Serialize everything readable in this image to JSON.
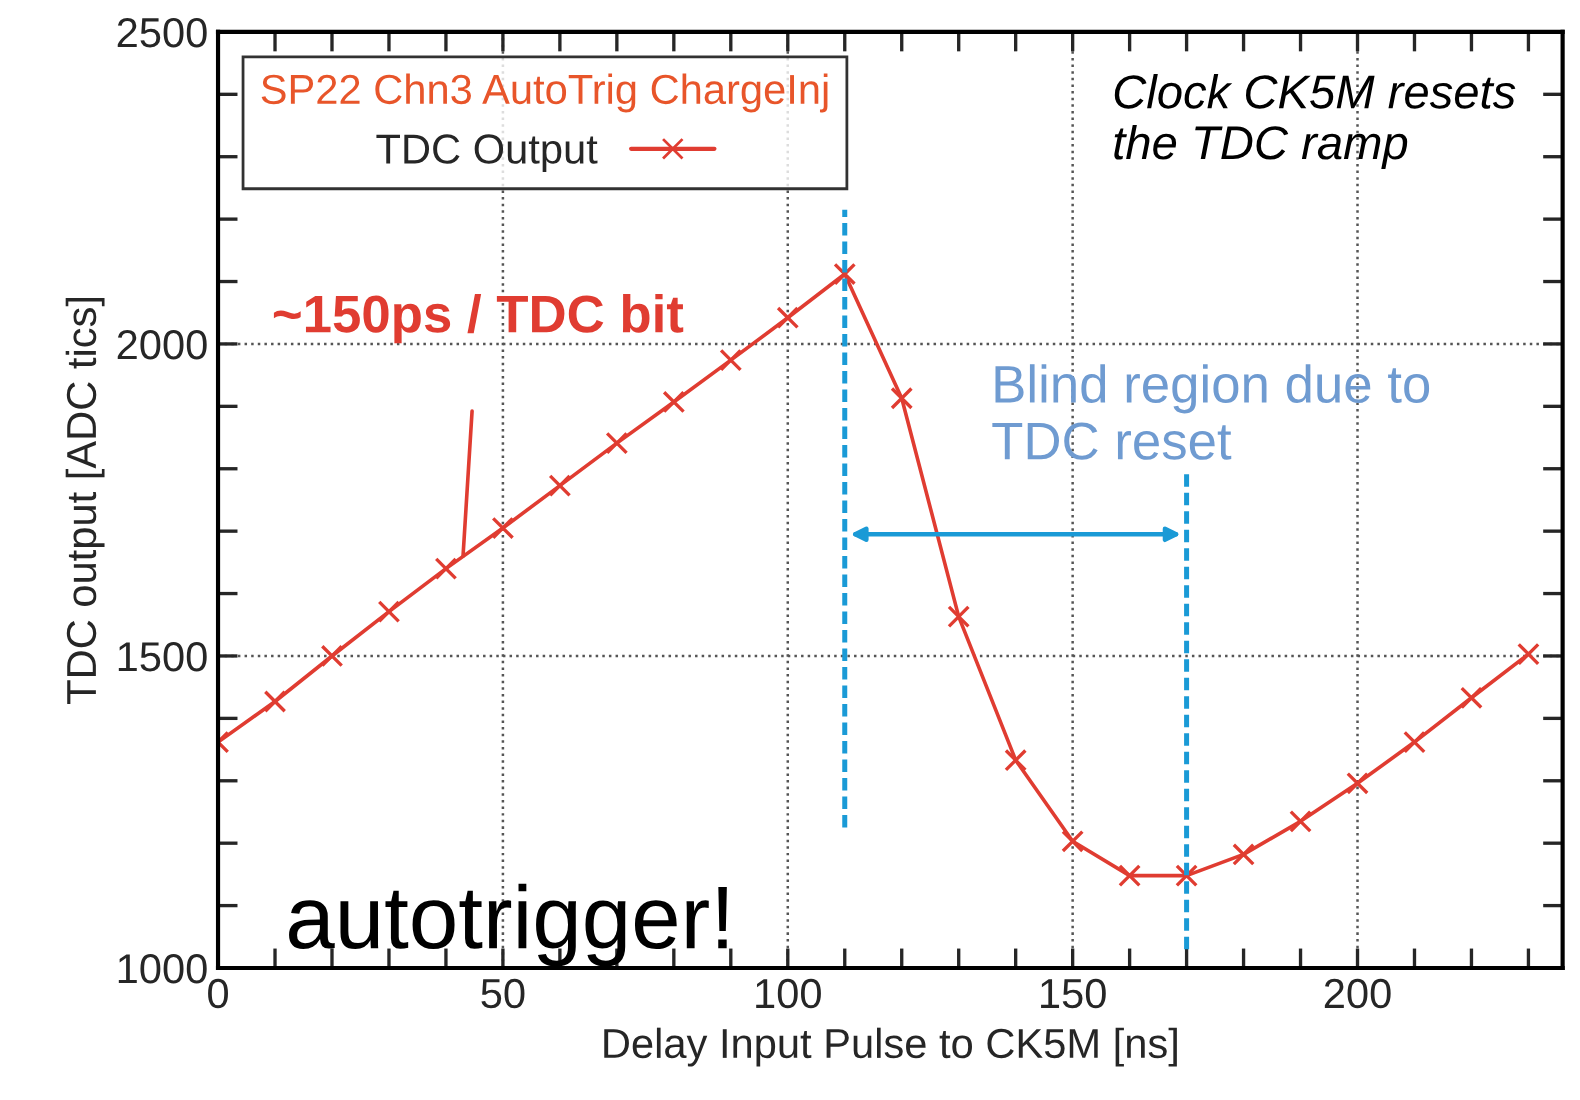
{
  "chart_data": {
    "type": "line",
    "xlabel": "Delay Input Pulse to CK5M [ns]",
    "ylabel": "TDC output [ADC tics]",
    "x": [
      0,
      10,
      20,
      30,
      40,
      50,
      60,
      70,
      80,
      90,
      100,
      110,
      120,
      130,
      140,
      150,
      160,
      170,
      180,
      190,
      200,
      210,
      220,
      230
    ],
    "series": [
      {
        "name": "TDC Output",
        "color": "#e03c31",
        "values": [
          1362,
          1427,
          1500,
          1571,
          1640,
          1705,
          1773,
          1841,
          1907,
          1974,
          2042,
          2112,
          1913,
          1563,
          1333,
          1203,
          1148,
          1148,
          1182,
          1235,
          1296,
          1362,
          1433,
          1503
        ]
      }
    ],
    "legend_title": "SP22 Chn3 AutoTrig ChargeInj",
    "legend": "top left",
    "marker": "cross",
    "line_style": "solid",
    "grid": true,
    "xlim": [
      0,
      236
    ],
    "ylim": [
      1000,
      2500
    ],
    "xticks": [
      0,
      {
        "value": 10,
        "label": null
      },
      {
        "value": 20,
        "label": null
      },
      {
        "value": 30,
        "label": null
      },
      {
        "value": 40,
        "label": null
      },
      50,
      {
        "value": 60,
        "label": null
      },
      {
        "value": 70,
        "label": null
      },
      {
        "value": 80,
        "label": null
      },
      {
        "value": 90,
        "label": null
      },
      100,
      {
        "value": 110,
        "label": null
      },
      {
        "value": 120,
        "label": null
      },
      {
        "value": 130,
        "label": null
      },
      {
        "value": 140,
        "label": null
      },
      150,
      {
        "value": 160,
        "label": null
      },
      {
        "value": 170,
        "label": null
      },
      {
        "value": 180,
        "label": null
      },
      {
        "value": 190,
        "label": null
      },
      200,
      {
        "value": 210,
        "label": null
      },
      {
        "value": 220,
        "label": null
      },
      {
        "value": 230,
        "label": null
      }
    ],
    "yticks": [
      1000,
      {
        "value": 1100,
        "label": null
      },
      {
        "value": 1200,
        "label": null
      },
      {
        "value": 1300,
        "label": null
      },
      {
        "value": 1400,
        "label": null
      },
      1500,
      {
        "value": 1600,
        "label": null
      },
      {
        "value": 1700,
        "label": null
      },
      {
        "value": 1800,
        "label": null
      },
      {
        "value": 1900,
        "label": null
      },
      2000,
      {
        "value": 2100,
        "label": null
      },
      {
        "value": 2200,
        "label": null
      },
      {
        "value": 2300,
        "label": null
      },
      {
        "value": 2400,
        "label": null
      },
      2500
    ],
    "ref_lines": [
      {
        "axis": "x",
        "value": 110,
        "color": "#1a9ad6",
        "line_style": "dotted"
      },
      {
        "axis": "x",
        "value": 170,
        "color": "#1a9ad6",
        "line_style": "dotted"
      }
    ],
    "annotations": [
      {
        "text": "~150ps / TDC bit",
        "x": 43,
        "y": 1660
      },
      "Blind region due to\nTDC reset",
      "Clock CK5M resets\nthe TDC ramp",
      "autotrigger!"
    ]
  }
}
